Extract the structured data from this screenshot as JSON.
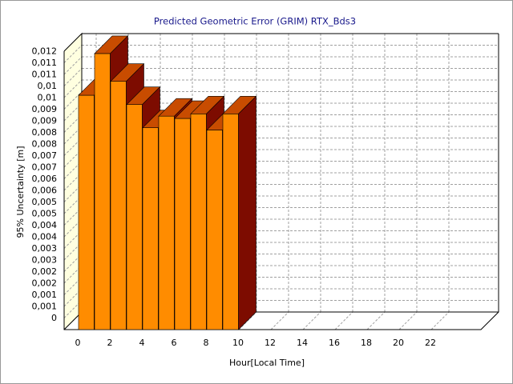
{
  "chart_data": {
    "type": "bar3d",
    "title": "Predicted Geometric Error (GRIM) RTX_Bds3",
    "x_label": "Hour[Local Time]",
    "y_label": "95% Uncertainty [m]",
    "categories": [
      0,
      null,
      2,
      null,
      4,
      null,
      6,
      null,
      8,
      null,
      10,
      null,
      12,
      null,
      14,
      null,
      16,
      null,
      18,
      null,
      20,
      null,
      22,
      null
    ],
    "values": [
      0.0101,
      0.0119,
      0.0107,
      0.0097,
      0.0087,
      0.0092,
      0.0091,
      0.0093,
      0.0086,
      0.0093,
      null,
      null,
      null,
      null,
      null,
      null,
      null,
      null,
      null,
      null,
      null,
      null,
      null,
      null
    ],
    "color": "#ff8c00",
    "ylim": [
      0,
      0.012
    ],
    "yticks": [
      0,
      {
        "value": 0.0005,
        "label": "0,001"
      },
      {
        "value": 0.001,
        "label": "0,001"
      },
      {
        "value": 0.0015,
        "label": "0,002"
      },
      {
        "value": 0.002,
        "label": "0,002"
      },
      {
        "value": 0.0025,
        "label": "0,003"
      },
      {
        "value": 0.003,
        "label": "0,003"
      },
      {
        "value": 0.0035,
        "label": "0,004"
      },
      {
        "value": 0.004,
        "label": "0,004"
      },
      {
        "value": 0.0045,
        "label": "0,005"
      },
      {
        "value": 0.005,
        "label": "0,005"
      },
      {
        "value": 0.0055,
        "label": "0,006"
      },
      {
        "value": 0.006,
        "label": "0,006"
      },
      {
        "value": 0.0065,
        "label": "0,007"
      },
      {
        "value": 0.007,
        "label": "0,007"
      },
      {
        "value": 0.0075,
        "label": "0,008"
      },
      {
        "value": 0.008,
        "label": "0,008"
      },
      {
        "value": 0.0085,
        "label": "0,009"
      },
      {
        "value": 0.009,
        "label": "0,009"
      },
      {
        "value": 0.0095,
        "label": "0,01"
      },
      {
        "value": 0.01,
        "label": "0,01"
      },
      {
        "value": 0.0105,
        "label": "0,011"
      },
      {
        "value": 0.011,
        "label": "0,011"
      },
      {
        "value": 0.0115,
        "label": "0,012"
      }
    ],
    "grid": true
  }
}
